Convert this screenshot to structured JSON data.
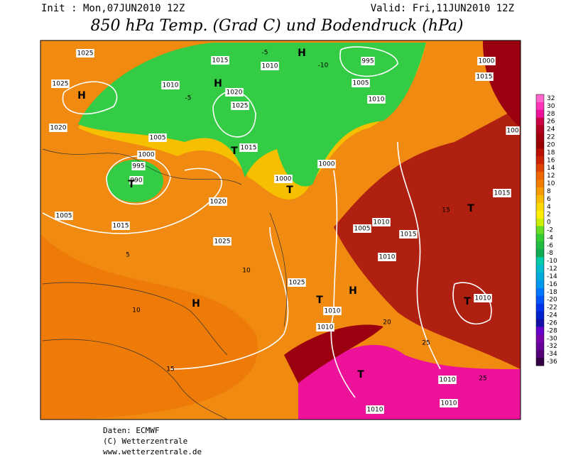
{
  "header": {
    "init": "Init : Mon,07JUN2010 12Z",
    "valid": "Valid: Fri,11JUN2010 12Z",
    "title": "850 hPa Temp. (Grad C) und Bodendruck (hPa)"
  },
  "legend": {
    "values": [
      32,
      30,
      28,
      26,
      24,
      22,
      20,
      18,
      16,
      14,
      12,
      10,
      8,
      6,
      4,
      2,
      0,
      -2,
      -4,
      -6,
      -8,
      -10,
      -12,
      -14,
      -16,
      -18,
      -20,
      -22,
      -24,
      -26,
      -28,
      -30,
      -32,
      -34,
      -36
    ],
    "colors": [
      "#ff66cc",
      "#ff33bb",
      "#ee1199",
      "#cc0044",
      "#b00020",
      "#a00010",
      "#990000",
      "#bb1100",
      "#cc2200",
      "#dd4400",
      "#ee6600",
      "#f27d00",
      "#f59a00",
      "#f8bb00",
      "#fcd800",
      "#ffee00",
      "#ccee00",
      "#66dd22",
      "#33cc33",
      "#22bb44",
      "#11aa55",
      "#00ccaa",
      "#00bbcc",
      "#00aadd",
      "#0099ee",
      "#0077ff",
      "#0055ff",
      "#0033ee",
      "#0022cc",
      "#1111aa",
      "#6600cc",
      "#7700aa",
      "#660099",
      "#550077",
      "#330044"
    ]
  },
  "map": {
    "labels": [
      "1025",
      "H",
      "1025",
      "1020",
      "1010",
      "-5",
      "1015",
      "H",
      "1020",
      "1025",
      "1010",
      "-5",
      "H",
      "995",
      "-10",
      "1005",
      "1010",
      "1005",
      "1000",
      "995",
      "990",
      "T",
      "1015",
      "T",
      "1000",
      "T",
      "1000",
      "1005",
      "H",
      "1015",
      "T",
      "1010",
      "1005",
      "1015",
      "1020",
      "1025",
      "H",
      "10",
      "5",
      "10",
      "15",
      "1025",
      "T",
      "1010",
      "1010",
      "1010",
      "20",
      "25",
      "1015",
      "1010",
      "T",
      "15",
      "1010",
      "T",
      "25",
      "1010",
      "1000",
      "100",
      "1015",
      "1010"
    ]
  },
  "footer": {
    "source": "Daten: ECMWF",
    "copyright": "(C) Wetterzentrale",
    "url": "www.wetterzentrale.de"
  }
}
